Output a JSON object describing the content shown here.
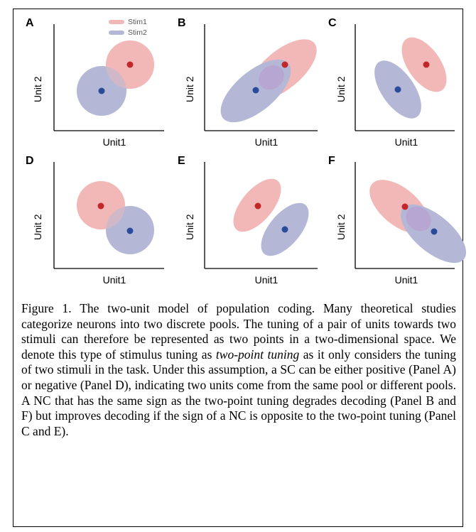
{
  "figure": {
    "legend": [
      {
        "label": "Stim1",
        "color": "#f2b8b8"
      },
      {
        "label": "Stim2",
        "color": "#b4b8d6"
      }
    ],
    "colors": {
      "stim1_fill": "#f2b8b8",
      "stim1_dot": "#c0282a",
      "stim2_fill": "#b4b8d6",
      "stim2_dot": "#2a4b9a",
      "overlap": "#b8a6d2"
    },
    "panels": [
      {
        "label": "A",
        "xlabel": "Unit1",
        "ylabel": "Unit 2"
      },
      {
        "label": "B",
        "xlabel": "Unit1",
        "ylabel": "Unit 2"
      },
      {
        "label": "C",
        "xlabel": "Unit1",
        "ylabel": "Unit 2"
      },
      {
        "label": "D",
        "xlabel": "Unit1",
        "ylabel": "Unit 2"
      },
      {
        "label": "E",
        "xlabel": "Unit1",
        "ylabel": "Unit 2"
      },
      {
        "label": "F",
        "xlabel": "Unit1",
        "ylabel": "Unit 2"
      }
    ]
  },
  "caption": {
    "part1": "Figure 1. The two-unit model of population coding. Many theoretical studies categorize neurons into two discrete pools. The tuning of a pair of units towards two stimuli can therefore be represented as two points in a two-dimensional space. We denote this type of stimulus tuning as ",
    "emphasis": "two-point tuning",
    "part2": " as it only considers the tuning of two stimuli in the task. Under this assumption, a SC can be either positive (Panel A) or negative (Panel D), indicating two units come from the same pool or different pools. A NC that has the same sign as the two-point tuning degrades decoding (Panel B and F) but improves decoding if the sign of a NC is opposite to the two-point tuning (Panel C and E)."
  }
}
